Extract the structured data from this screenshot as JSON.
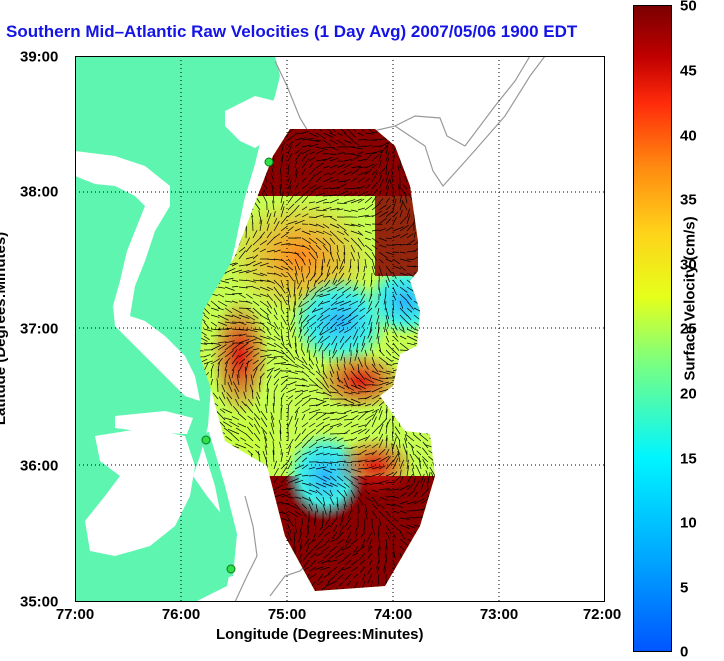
{
  "title": "Southern Mid–Atlantic Raw Velocities (1 Day Avg) 2007/05/06 1900 EDT",
  "x_axis": {
    "label": "Longitude (Degrees:Minutes)",
    "ticks": [
      "77:00",
      "76:00",
      "75:00",
      "74:00",
      "73:00",
      "72:00"
    ]
  },
  "y_axis": {
    "label": "Latitude (Degrees:Minutes)",
    "ticks": [
      "39:00",
      "38:00",
      "37:00",
      "36:00",
      "35:00"
    ]
  },
  "colorbar": {
    "label": "Surface Velocity (cm/s)",
    "ticks": [
      "50",
      "45",
      "40",
      "35",
      "30",
      "25",
      "20",
      "15",
      "10",
      "5",
      "0"
    ],
    "range": [
      0,
      50
    ]
  },
  "map": {
    "lon_range": [
      -77,
      -72
    ],
    "lat_range": [
      35,
      39
    ],
    "land_color": "#5ef5b0",
    "water_color": "#ffffff",
    "grid": "dotted",
    "colormap": "jet",
    "stations": [
      "station-1",
      "station-2",
      "station-3"
    ]
  }
}
